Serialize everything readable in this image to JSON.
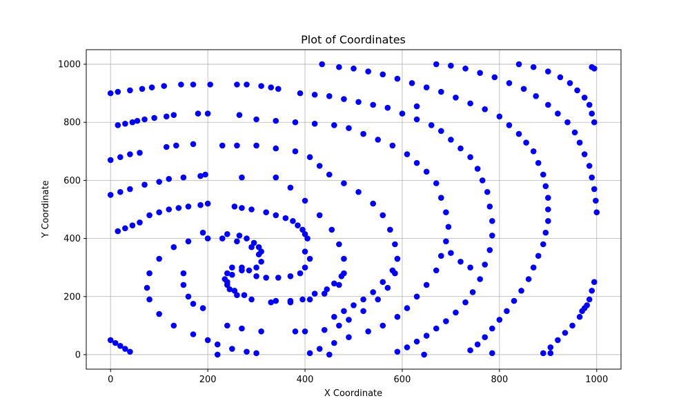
{
  "chart_data": {
    "type": "scatter",
    "title": "Plot of Coordinates",
    "xlabel": "X Coordinate",
    "ylabel": "Y Coordinate",
    "xlim": [
      -50,
      1050
    ],
    "ylim": [
      -50,
      1050
    ],
    "xticks": [
      0,
      200,
      400,
      600,
      800,
      1000
    ],
    "yticks": [
      0,
      200,
      400,
      600,
      800,
      1000
    ],
    "xtick_labels": [
      "0",
      "200",
      "400",
      "600",
      "800",
      "1000"
    ],
    "ytick_labels": [
      "0",
      "200",
      "400",
      "600",
      "800",
      "1000"
    ],
    "grid": true,
    "color": "#0000ff",
    "series": [
      {
        "points": [
          [
            270,
            300
          ],
          [
            285,
            290
          ],
          [
            300,
            300
          ],
          [
            310,
            320
          ],
          [
            305,
            345
          ],
          [
            290,
            370
          ],
          [
            260,
            390
          ],
          [
            230,
            400
          ],
          [
            200,
            400
          ],
          [
            160,
            390
          ],
          [
            130,
            370
          ],
          [
            100,
            330
          ],
          [
            80,
            280
          ],
          [
            75,
            230
          ],
          [
            80,
            190
          ],
          [
            100,
            140
          ],
          [
            130,
            100
          ],
          [
            170,
            70
          ],
          [
            200,
            50
          ],
          [
            220,
            35
          ],
          [
            250,
            20
          ],
          [
            280,
            10
          ],
          [
            300,
            5
          ],
          [
            270,
            290
          ],
          [
            250,
            275
          ],
          [
            240,
            250
          ],
          [
            245,
            225
          ],
          [
            260,
            205
          ],
          [
            290,
            190
          ],
          [
            330,
            180
          ],
          [
            370,
            180
          ],
          [
            410,
            190
          ],
          [
            440,
            210
          ],
          [
            470,
            240
          ],
          [
            480,
            280
          ],
          [
            480,
            330
          ],
          [
            470,
            380
          ],
          [
            455,
            430
          ],
          [
            430,
            480
          ],
          [
            400,
            530
          ],
          [
            370,
            575
          ],
          [
            340,
            610
          ],
          [
            230,
            720
          ],
          [
            260,
            720
          ],
          [
            300,
            720
          ],
          [
            340,
            710
          ],
          [
            380,
            700
          ],
          [
            410,
            680
          ],
          [
            430,
            650
          ],
          [
            450,
            620
          ],
          [
            480,
            590
          ],
          [
            510,
            560
          ],
          [
            540,
            520
          ],
          [
            560,
            480
          ],
          [
            575,
            430
          ],
          [
            585,
            380
          ],
          [
            590,
            330
          ],
          [
            585,
            280
          ],
          [
            570,
            230
          ],
          [
            550,
            190
          ],
          [
            520,
            150
          ],
          [
            490,
            120
          ],
          [
            470,
            100
          ],
          [
            440,
            85
          ],
          [
            400,
            80
          ],
          [
            380,
            80
          ],
          [
            590,
            330
          ],
          [
            580,
            290
          ],
          [
            560,
            250
          ],
          [
            540,
            215
          ],
          [
            520,
            190
          ],
          [
            500,
            170
          ],
          [
            480,
            150
          ],
          [
            460,
            130
          ],
          [
            300,
            810
          ],
          [
            340,
            805
          ],
          [
            380,
            800
          ],
          [
            420,
            795
          ],
          [
            460,
            790
          ],
          [
            490,
            780
          ],
          [
            520,
            760
          ],
          [
            550,
            740
          ],
          [
            580,
            720
          ],
          [
            610,
            690
          ],
          [
            630,
            660
          ],
          [
            650,
            630
          ],
          [
            670,
            590
          ],
          [
            680,
            540
          ],
          [
            690,
            490
          ],
          [
            695,
            440
          ],
          [
            690,
            390
          ],
          [
            680,
            340
          ],
          [
            670,
            290
          ],
          [
            650,
            240
          ],
          [
            630,
            200
          ],
          [
            610,
            160
          ],
          [
            590,
            130
          ],
          [
            560,
            100
          ],
          [
            530,
            80
          ],
          [
            490,
            60
          ],
          [
            460,
            40
          ],
          [
            430,
            20
          ],
          [
            410,
            5
          ],
          [
            390,
            900
          ],
          [
            420,
            895
          ],
          [
            450,
            890
          ],
          [
            480,
            880
          ],
          [
            510,
            870
          ],
          [
            540,
            860
          ],
          [
            570,
            850
          ],
          [
            600,
            830
          ],
          [
            630,
            810
          ],
          [
            660,
            790
          ],
          [
            680,
            770
          ],
          [
            700,
            740
          ],
          [
            720,
            710
          ],
          [
            740,
            680
          ],
          [
            755,
            640
          ],
          [
            765,
            600
          ],
          [
            775,
            560
          ],
          [
            780,
            510
          ],
          [
            785,
            460
          ],
          [
            785,
            410
          ],
          [
            780,
            360
          ],
          [
            770,
            310
          ],
          [
            760,
            260
          ],
          [
            745,
            215
          ],
          [
            730,
            180
          ],
          [
            710,
            145
          ],
          [
            690,
            115
          ],
          [
            670,
            90
          ],
          [
            650,
            65
          ],
          [
            630,
            45
          ],
          [
            610,
            25
          ],
          [
            590,
            10
          ],
          [
            470,
            990
          ],
          [
            500,
            985
          ],
          [
            530,
            975
          ],
          [
            560,
            965
          ],
          [
            590,
            950
          ],
          [
            620,
            935
          ],
          [
            650,
            920
          ],
          [
            680,
            905
          ],
          [
            710,
            885
          ],
          [
            740,
            865
          ],
          [
            770,
            845
          ],
          [
            800,
            820
          ],
          [
            820,
            790
          ],
          [
            840,
            760
          ],
          [
            855,
            730
          ],
          [
            870,
            700
          ],
          [
            880,
            660
          ],
          [
            890,
            620
          ],
          [
            895,
            580
          ],
          [
            900,
            540
          ],
          [
            900,
            500
          ],
          [
            900,
            460
          ],
          [
            895,
            420
          ],
          [
            890,
            380
          ],
          [
            880,
            340
          ],
          [
            870,
            300
          ],
          [
            860,
            260
          ],
          [
            845,
            220
          ],
          [
            830,
            185
          ],
          [
            815,
            150
          ],
          [
            800,
            120
          ],
          [
            785,
            90
          ],
          [
            770,
            60
          ],
          [
            755,
            35
          ],
          [
            740,
            15
          ],
          [
            670,
            1000
          ],
          [
            700,
            995
          ],
          [
            730,
            985
          ],
          [
            760,
            970
          ],
          [
            790,
            955
          ],
          [
            820,
            935
          ],
          [
            850,
            915
          ],
          [
            875,
            890
          ],
          [
            900,
            860
          ],
          [
            920,
            830
          ],
          [
            940,
            800
          ],
          [
            955,
            765
          ],
          [
            965,
            730
          ],
          [
            975,
            690
          ],
          [
            985,
            650
          ],
          [
            990,
            610
          ],
          [
            995,
            570
          ],
          [
            998,
            530
          ],
          [
            1000,
            490
          ],
          [
            840,
            1000
          ],
          [
            870,
            990
          ],
          [
            900,
            975
          ],
          [
            925,
            955
          ],
          [
            945,
            935
          ],
          [
            960,
            910
          ],
          [
            975,
            885
          ],
          [
            985,
            860
          ],
          [
            990,
            830
          ],
          [
            995,
            800
          ],
          [
            990,
            990
          ],
          [
            995,
            985
          ],
          [
            995,
            250
          ],
          [
            990,
            220
          ],
          [
            985,
            190
          ],
          [
            975,
            160
          ],
          [
            965,
            130
          ],
          [
            950,
            100
          ],
          [
            935,
            75
          ],
          [
            920,
            50
          ],
          [
            905,
            25
          ],
          [
            890,
            5
          ],
          [
            980,
            170
          ],
          [
            970,
            150
          ],
          [
            0,
            670
          ],
          [
            20,
            680
          ],
          [
            40,
            690
          ],
          [
            60,
            695
          ],
          [
            115,
            715
          ],
          [
            135,
            720
          ],
          [
            170,
            725
          ],
          [
            15,
            790
          ],
          [
            30,
            795
          ],
          [
            45,
            800
          ],
          [
            55,
            805
          ],
          [
            70,
            810
          ],
          [
            90,
            815
          ],
          [
            115,
            820
          ],
          [
            130,
            825
          ],
          [
            180,
            830
          ],
          [
            200,
            830
          ],
          [
            0,
            900
          ],
          [
            15,
            905
          ],
          [
            40,
            910
          ],
          [
            65,
            915
          ],
          [
            85,
            920
          ],
          [
            110,
            925
          ],
          [
            145,
            930
          ],
          [
            170,
            930
          ],
          [
            205,
            930
          ],
          [
            260,
            930
          ],
          [
            280,
            930
          ],
          [
            310,
            925
          ],
          [
            330,
            920
          ],
          [
            345,
            915
          ],
          [
            0,
            550
          ],
          [
            20,
            560
          ],
          [
            40,
            570
          ],
          [
            70,
            585
          ],
          [
            100,
            595
          ],
          [
            120,
            605
          ],
          [
            150,
            610
          ],
          [
            185,
            615
          ],
          [
            195,
            620
          ],
          [
            15,
            425
          ],
          [
            30,
            435
          ],
          [
            45,
            445
          ],
          [
            60,
            455
          ],
          [
            80,
            480
          ],
          [
            100,
            490
          ],
          [
            120,
            500
          ],
          [
            140,
            505
          ],
          [
            160,
            510
          ],
          [
            185,
            515
          ],
          [
            200,
            520
          ],
          [
            255,
            510
          ],
          [
            270,
            505
          ],
          [
            290,
            500
          ],
          [
            320,
            490
          ],
          [
            340,
            480
          ],
          [
            360,
            470
          ],
          [
            375,
            460
          ],
          [
            385,
            445
          ],
          [
            395,
            430
          ],
          [
            400,
            415
          ],
          [
            405,
            400
          ],
          [
            240,
            415
          ],
          [
            265,
            410
          ],
          [
            280,
            400
          ],
          [
            295,
            385
          ],
          [
            305,
            370
          ],
          [
            310,
            355
          ],
          [
            250,
            300
          ],
          [
            240,
            280
          ],
          [
            235,
            260
          ],
          [
            240,
            240
          ],
          [
            255,
            220
          ],
          [
            275,
            205
          ],
          [
            300,
            270
          ],
          [
            320,
            265
          ],
          [
            345,
            265
          ],
          [
            370,
            270
          ],
          [
            390,
            280
          ],
          [
            400,
            300
          ],
          [
            410,
            330
          ],
          [
            400,
            355
          ],
          [
            340,
            185
          ],
          [
            370,
            185
          ],
          [
            395,
            190
          ],
          [
            420,
            210
          ],
          [
            445,
            225
          ],
          [
            460,
            245
          ],
          [
            475,
            270
          ],
          [
            240,
            100
          ],
          [
            270,
            90
          ],
          [
            310,
            80
          ],
          [
            0,
            50
          ],
          [
            10,
            40
          ],
          [
            20,
            30
          ],
          [
            30,
            20
          ],
          [
            40,
            10
          ],
          [
            220,
            0
          ],
          [
            450,
            0
          ],
          [
            645,
            0
          ],
          [
            785,
            5
          ],
          [
            905,
            5
          ],
          [
            265,
            825
          ],
          [
            270,
            610
          ],
          [
            190,
            420
          ],
          [
            150,
            280
          ],
          [
            150,
            240
          ],
          [
            160,
            200
          ],
          [
            170,
            175
          ],
          [
            190,
            160
          ],
          [
            435,
            1000
          ],
          [
            630,
            855
          ],
          [
            700,
            350
          ],
          [
            720,
            320
          ],
          [
            740,
            300
          ]
        ]
      }
    ]
  }
}
